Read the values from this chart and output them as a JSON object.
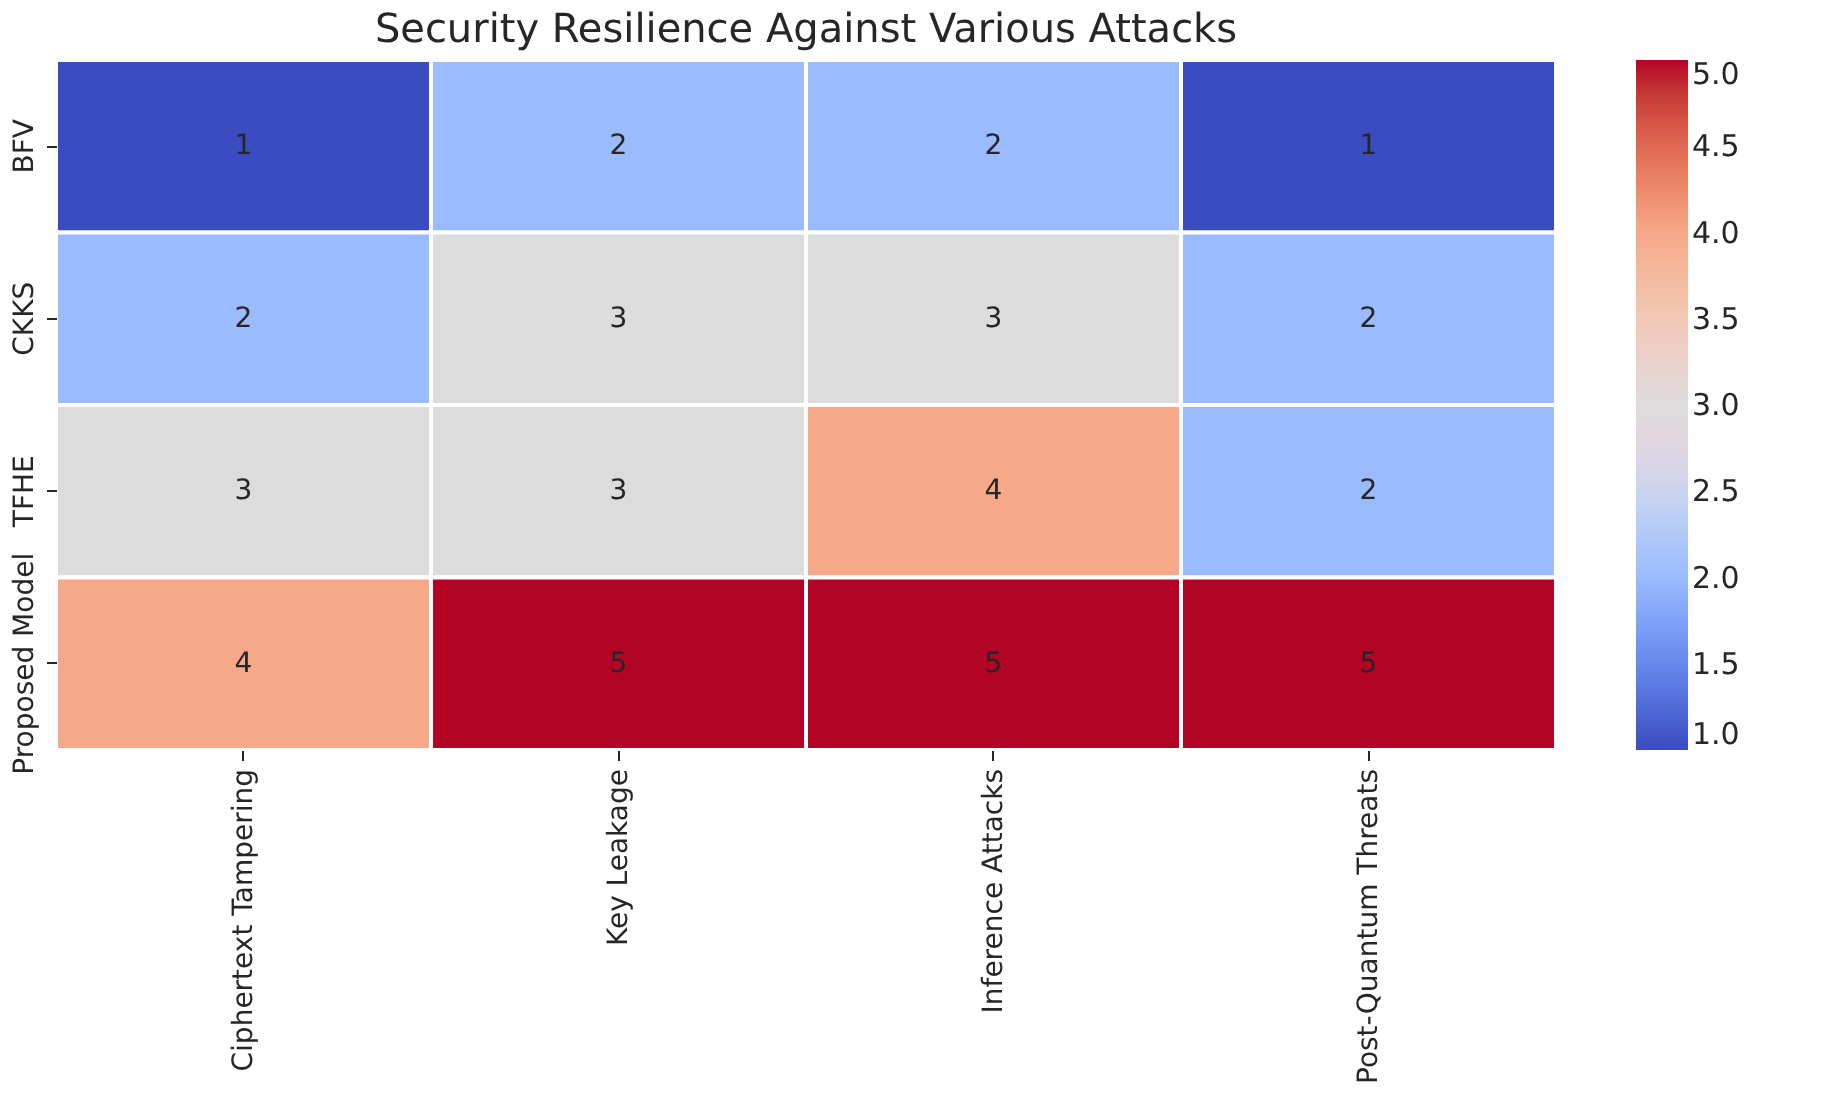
{
  "chart_data": {
    "type": "heatmap",
    "title": "Security Resilience Against Various Attacks",
    "categories": [
      "Ciphertext Tampering",
      "Key Leakage",
      "Inference Attacks",
      "Post-Quantum Threats"
    ],
    "y_categories": [
      "BFV",
      "CKKS",
      "TFHE",
      "Proposed Model"
    ],
    "cells": [
      [
        1,
        2,
        2,
        1
      ],
      [
        2,
        3,
        3,
        2
      ],
      [
        3,
        3,
        4,
        2
      ],
      [
        4,
        5,
        5,
        5
      ]
    ],
    "data_labels": true,
    "clim": [
      1,
      5
    ],
    "cticks": [
      {
        "value": 1,
        "label": "1.0"
      },
      {
        "value": 1.5,
        "label": "1.5"
      },
      {
        "value": 2,
        "label": "2.0"
      },
      {
        "value": 2.5,
        "label": "2.5"
      },
      {
        "value": 3,
        "label": "3.0"
      },
      {
        "value": 3.5,
        "label": "3.5"
      },
      {
        "value": 4,
        "label": "4.0"
      },
      {
        "value": 4.5,
        "label": "4.5"
      },
      {
        "value": 5,
        "label": "5.0"
      }
    ]
  }
}
